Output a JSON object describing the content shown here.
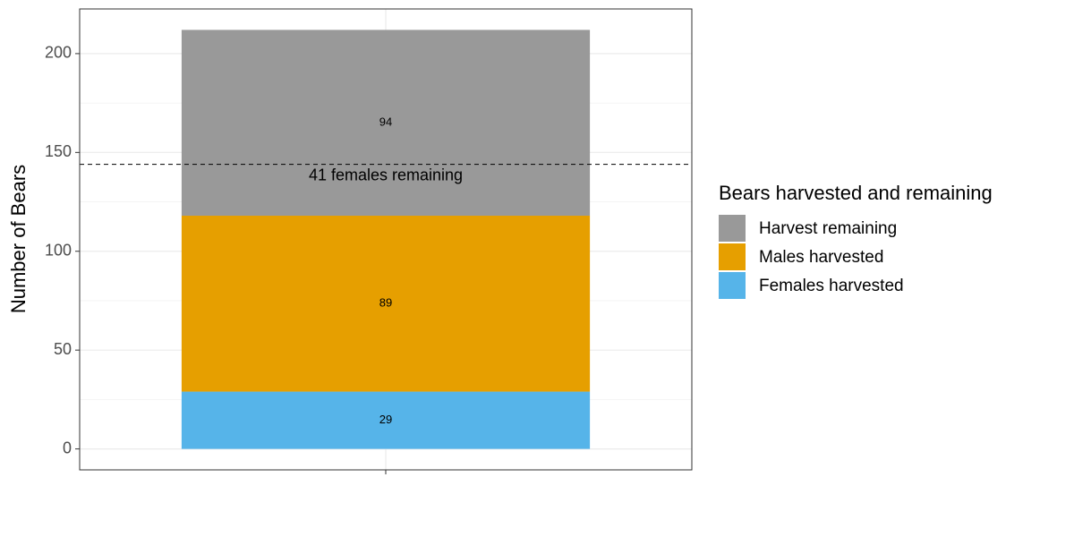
{
  "chart_data": {
    "type": "stacked_bar",
    "categories": [
      null
    ],
    "series": [
      {
        "name": "Females harvested",
        "color": "#56B4E9",
        "values": [
          29
        ]
      },
      {
        "name": "Males harvested",
        "color": "#E69F00",
        "values": [
          89
        ]
      },
      {
        "name": "Harvest remaining",
        "color": "#999999",
        "values": [
          94
        ]
      }
    ],
    "y_label": "Number of Bears",
    "legend_title": "Bears harvested and remaining",
    "legend_position": "right",
    "ylim": [
      -10.6,
      222.6
    ],
    "yticks": [
      0,
      50,
      100,
      150,
      200
    ],
    "minor_yticks": [
      25,
      75,
      125,
      175
    ],
    "grid": true,
    "hline": {
      "value": 144,
      "label": "41 females remaining"
    }
  }
}
